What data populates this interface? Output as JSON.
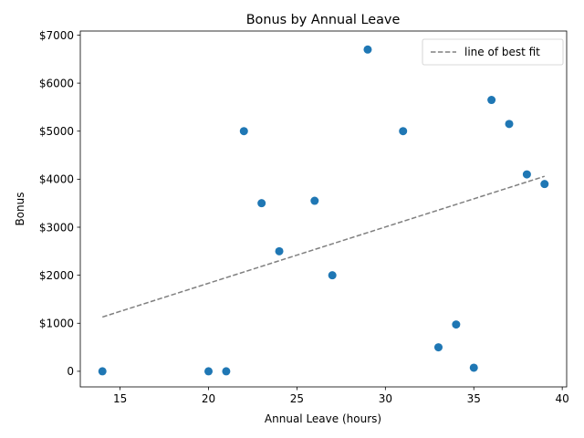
{
  "chart_data": {
    "type": "scatter",
    "title": "Bonus by Annual Leave",
    "xlabel": "Annual Leave (hours)",
    "ylabel": "Bonus",
    "xlim": [
      12.75,
      40.25
    ],
    "ylim": [
      -325,
      7085
    ],
    "xticks": [
      15,
      20,
      25,
      30,
      35,
      40
    ],
    "xtick_labels": [
      "15",
      "20",
      "25",
      "30",
      "35",
      "40"
    ],
    "yticks": [
      0,
      1000,
      2000,
      3000,
      4000,
      5000,
      6000,
      7000
    ],
    "ytick_labels": [
      "0",
      "$1000",
      "$2000",
      "$3000",
      "$4000",
      "$5000",
      "$6000",
      "$7000"
    ],
    "grid": false,
    "legend_position": "top-right",
    "point_color": "#1f77b4",
    "fit_color": "#808080",
    "series": [
      {
        "x": [
          14,
          20,
          21,
          22,
          23,
          24,
          26,
          27,
          29,
          31,
          33,
          34,
          35,
          36,
          37,
          38,
          39
        ],
        "y": [
          0,
          0,
          0,
          5000,
          3500,
          2500,
          3550,
          2000,
          6700,
          5000,
          500,
          975,
          75,
          5650,
          5150,
          4100,
          3900
        ]
      }
    ],
    "fit_line": {
      "name": "line of best fit",
      "x": [
        14,
        39
      ],
      "y": [
        1130,
        4060
      ]
    }
  }
}
